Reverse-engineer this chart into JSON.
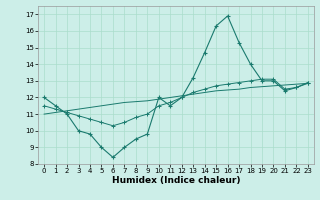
{
  "xlabel": "Humidex (Indice chaleur)",
  "bg_color": "#cceee8",
  "line_color": "#1a7a6e",
  "grid_color": "#aaddcc",
  "xlim": [
    -0.5,
    23.5
  ],
  "ylim": [
    8,
    17.5
  ],
  "xticks": [
    0,
    1,
    2,
    3,
    4,
    5,
    6,
    7,
    8,
    9,
    10,
    11,
    12,
    13,
    14,
    15,
    16,
    17,
    18,
    19,
    20,
    21,
    22,
    23
  ],
  "yticks": [
    8,
    9,
    10,
    11,
    12,
    13,
    14,
    15,
    16,
    17
  ],
  "line1_y": [
    12.0,
    11.5,
    11.0,
    10.0,
    9.8,
    9.0,
    8.4,
    9.0,
    9.5,
    9.8,
    12.0,
    11.5,
    12.0,
    13.2,
    14.7,
    16.3,
    16.9,
    15.3,
    14.0,
    13.0,
    13.0,
    12.4,
    12.6,
    12.9
  ],
  "line2_y": [
    11.5,
    11.3,
    11.1,
    10.9,
    10.7,
    10.5,
    10.3,
    10.5,
    10.8,
    11.0,
    11.5,
    11.7,
    12.0,
    12.3,
    12.5,
    12.7,
    12.8,
    12.9,
    13.0,
    13.1,
    13.1,
    12.5,
    12.6,
    12.85
  ],
  "line3_y": [
    11.0,
    11.1,
    11.2,
    11.3,
    11.4,
    11.5,
    11.6,
    11.7,
    11.75,
    11.8,
    11.9,
    12.0,
    12.1,
    12.2,
    12.3,
    12.4,
    12.45,
    12.5,
    12.6,
    12.65,
    12.7,
    12.75,
    12.8,
    12.85
  ],
  "xlabel_fontsize": 6.5,
  "tick_fontsize": 5.0
}
